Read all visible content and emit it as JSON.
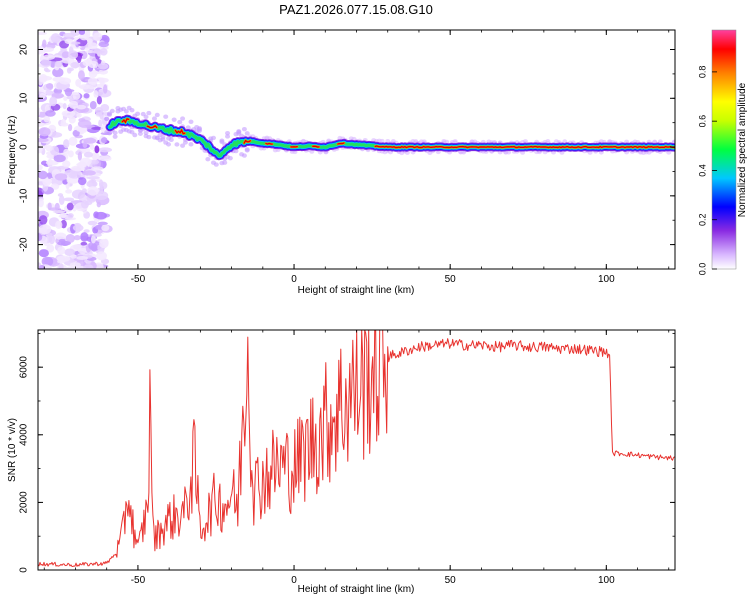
{
  "chart_data": [
    {
      "type": "heatmap",
      "title": "PAZ1.2026.077.15.08.G10",
      "xlabel": "Height of straight line (km)",
      "ylabel": "Frequency (Hz)",
      "xlim": [
        -82,
        122
      ],
      "ylim": [
        -25,
        24
      ],
      "x_ticks": [
        -50,
        0,
        50,
        100
      ],
      "y_ticks": [
        -20,
        -10,
        0,
        10,
        20
      ],
      "colorbar": {
        "label": "Normalized spectral amplitude",
        "range": [
          0.0,
          0.97
        ],
        "ticks": [
          "0.0",
          "0.2",
          "0.4",
          "0.6",
          "0.8"
        ]
      },
      "ridge": {
        "name": "frequency ridge",
        "x": [
          -59,
          -55,
          -50,
          -45,
          -40,
          -35,
          -30,
          -27,
          -24,
          -22,
          -20,
          -17,
          -14,
          -10,
          -5,
          0,
          5,
          10,
          15,
          20,
          30,
          50,
          70,
          90,
          100,
          110,
          122
        ],
        "y": [
          4.5,
          5.5,
          5.0,
          4.0,
          3.5,
          3.0,
          1.5,
          0.0,
          -2.0,
          -0.5,
          0.5,
          1.0,
          1.2,
          0.8,
          0.5,
          0.0,
          0.2,
          0.0,
          0.8,
          0.5,
          0.0,
          0.0,
          0.0,
          0.0,
          0.0,
          0.0,
          0.0
        ]
      },
      "noise_region_x": [
        -82,
        -60
      ]
    },
    {
      "type": "line",
      "xlabel": "Height of straight line (km)",
      "ylabel": "SNR (10 * v/v)",
      "xlim": [
        -82,
        122
      ],
      "ylim": [
        0,
        7100
      ],
      "x_ticks": [
        -50,
        0,
        50,
        100
      ],
      "y_ticks": [
        0,
        2000,
        4000,
        6000
      ],
      "color": "#e8332f",
      "series": [
        {
          "name": "SNR",
          "x": [
            -82,
            -70,
            -60,
            -57,
            -55,
            -53,
            -52,
            -50,
            -47,
            -46,
            -45,
            -40,
            -35,
            -32,
            -30,
            -25,
            -22,
            -20,
            -18,
            -16,
            -15,
            -13,
            -10,
            -5,
            0,
            5,
            10,
            15,
            20,
            25,
            30,
            35,
            40,
            45,
            50,
            55,
            60,
            65,
            70,
            75,
            80,
            85,
            90,
            95,
            100,
            101,
            102,
            105,
            110,
            115,
            122
          ],
          "y": [
            180,
            150,
            200,
            500,
            1000,
            2400,
            1500,
            600,
            1800,
            4900,
            900,
            1500,
            1700,
            3200,
            1200,
            2100,
            1900,
            2300,
            1800,
            5100,
            7100,
            2400,
            2700,
            3100,
            3000,
            3700,
            4300,
            4900,
            5400,
            6000,
            6300,
            6450,
            6600,
            6650,
            6700,
            6650,
            6650,
            6600,
            6650,
            6600,
            6600,
            6550,
            6550,
            6500,
            6450,
            6400,
            3450,
            3450,
            3400,
            3350,
            3300
          ]
        }
      ]
    }
  ]
}
